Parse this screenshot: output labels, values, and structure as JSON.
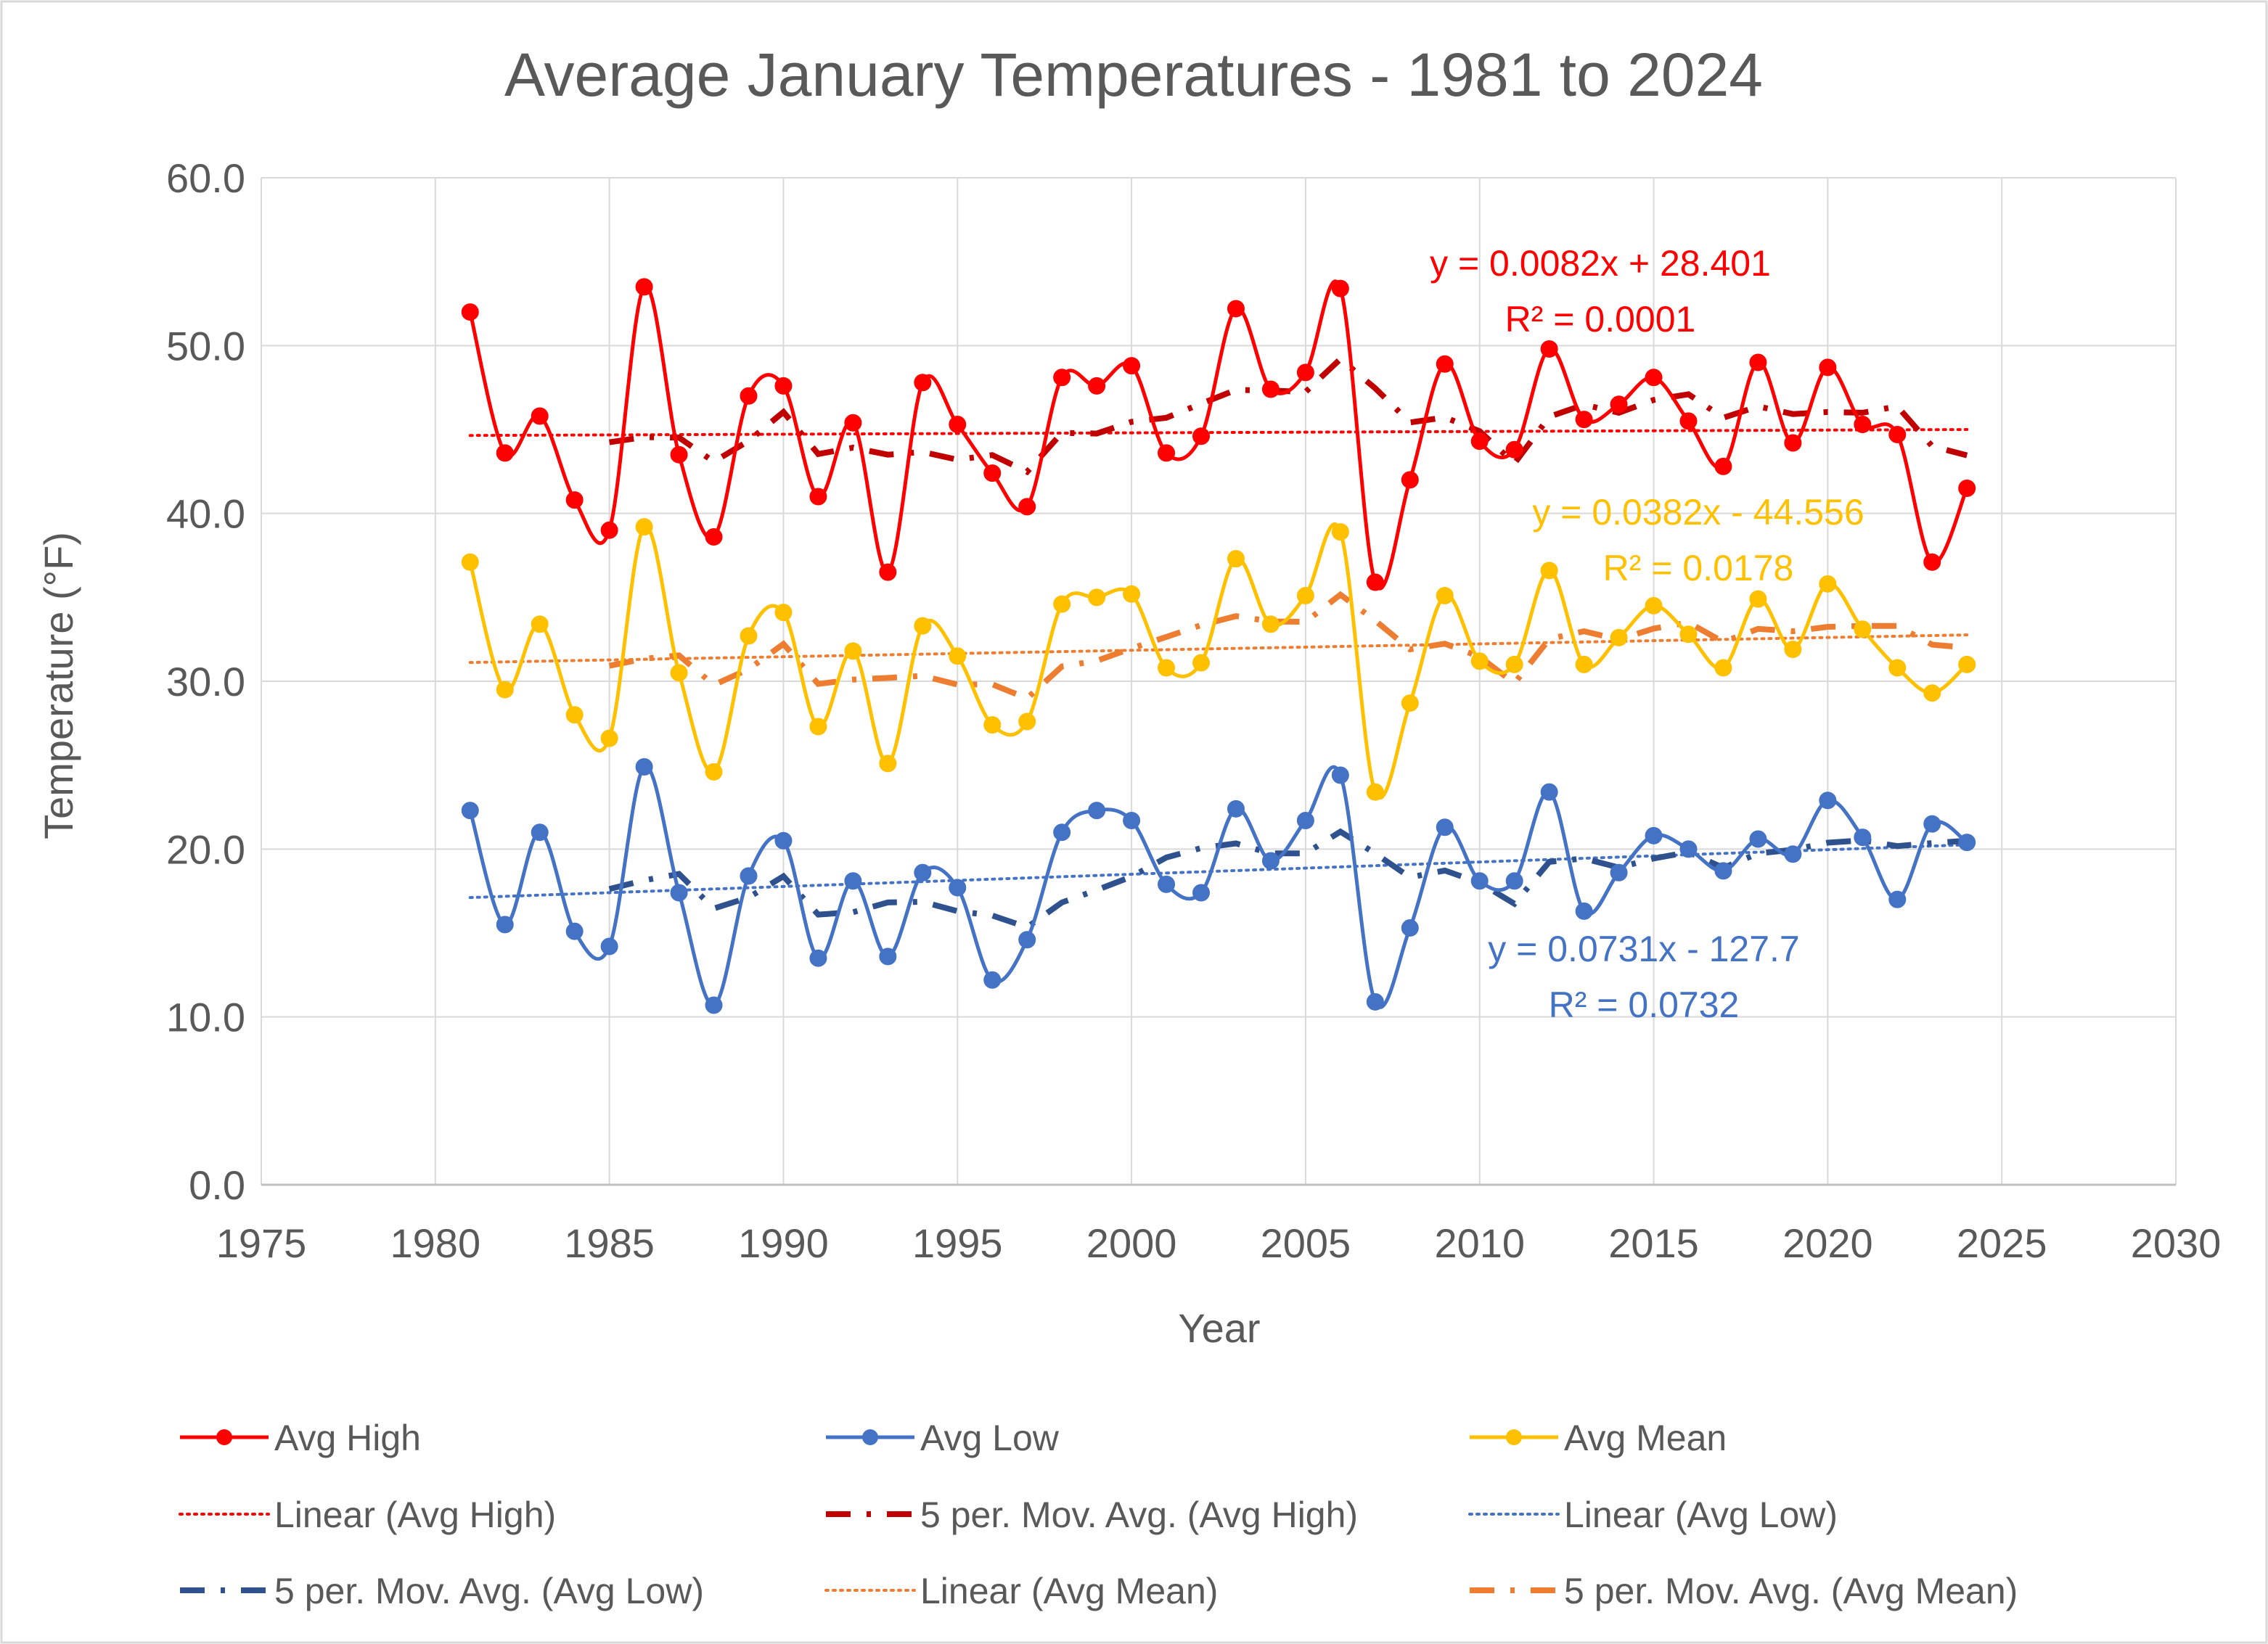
{
  "chart_data": {
    "type": "line",
    "title": "Average January Temperatures - 1981 to 2024",
    "xlabel": "Year",
    "ylabel": "Temperature (°F)",
    "xlim": [
      1975,
      2030
    ],
    "ylim": [
      0,
      60
    ],
    "xticks": [
      1975,
      1980,
      1985,
      1990,
      1995,
      2000,
      2005,
      2010,
      2015,
      2020,
      2025,
      2030
    ],
    "yticks": [
      0,
      10,
      20,
      30,
      40,
      50,
      60
    ],
    "ytick_labels": [
      "0.0",
      "10.0",
      "20.0",
      "30.0",
      "40.0",
      "50.0",
      "60.0"
    ],
    "grid": true,
    "legend_position": "bottom",
    "x": [
      1981,
      1982,
      1983,
      1984,
      1985,
      1986,
      1987,
      1988,
      1989,
      1990,
      1991,
      1992,
      1993,
      1994,
      1995,
      1996,
      1997,
      1998,
      1999,
      2000,
      2001,
      2002,
      2003,
      2004,
      2005,
      2006,
      2007,
      2008,
      2009,
      2010,
      2011,
      2012,
      2013,
      2014,
      2015,
      2016,
      2017,
      2018,
      2019,
      2020,
      2021,
      2022,
      2023,
      2024
    ],
    "series": [
      {
        "name": "Avg High",
        "color": "#FF0000",
        "values": [
          52.0,
          43.6,
          45.8,
          40.8,
          39.0,
          53.5,
          43.5,
          38.6,
          47.0,
          47.6,
          41.0,
          45.4,
          36.5,
          47.8,
          45.3,
          42.4,
          40.4,
          48.1,
          47.6,
          48.8,
          43.6,
          44.6,
          52.2,
          47.4,
          48.4,
          53.4,
          35.9,
          42.0,
          48.9,
          44.3,
          43.8,
          49.8,
          45.6,
          46.5,
          48.1,
          45.5,
          42.8,
          49.0,
          44.2,
          48.7,
          45.3,
          44.7,
          37.1,
          41.5
        ],
        "trend_label": "Linear (Avg High)",
        "trend_color": "#FF0000",
        "trend_slope": 0.0082,
        "trend_intercept": 28.401,
        "trend_equation": "y = 0.0082x + 28.401",
        "trend_r2": "R² = 0.0001",
        "movavg_label": "5 per. Mov. Avg. (Avg High)",
        "movavg_color": "#C00000"
      },
      {
        "name": "Avg Low",
        "color": "#4472C4",
        "values": [
          22.3,
          15.5,
          21.0,
          15.1,
          14.2,
          24.9,
          17.4,
          10.7,
          18.4,
          20.5,
          13.5,
          18.1,
          13.6,
          18.6,
          17.7,
          12.2,
          14.6,
          21.0,
          22.3,
          21.7,
          17.9,
          17.4,
          22.4,
          19.3,
          21.7,
          24.4,
          10.9,
          15.3,
          21.3,
          18.1,
          18.1,
          23.4,
          16.3,
          18.6,
          20.8,
          20.0,
          18.7,
          20.6,
          19.7,
          22.9,
          20.7,
          17.0,
          21.5,
          20.4
        ],
        "trend_label": "Linear (Avg Low)",
        "trend_color": "#4472C4",
        "trend_slope": 0.0731,
        "trend_intercept": -127.7,
        "trend_equation": "y = 0.0731x - 127.7",
        "trend_r2": "R² = 0.0732",
        "movavg_label": "5 per. Mov. Avg. (Avg Low)",
        "movavg_color": "#2F528F"
      },
      {
        "name": "Avg Mean",
        "color": "#FFC000",
        "values": [
          37.1,
          29.5,
          33.4,
          28.0,
          26.6,
          39.2,
          30.5,
          24.6,
          32.7,
          34.1,
          27.3,
          31.8,
          25.1,
          33.3,
          31.5,
          27.4,
          27.6,
          34.6,
          35.0,
          35.2,
          30.8,
          31.1,
          37.3,
          33.4,
          35.1,
          38.9,
          23.4,
          28.7,
          35.1,
          31.2,
          31.0,
          36.6,
          31.0,
          32.6,
          34.5,
          32.8,
          30.8,
          34.9,
          31.9,
          35.8,
          33.1,
          30.8,
          29.3,
          31.0
        ],
        "trend_label": "Linear (Avg Mean)",
        "trend_color": "#ED7D31",
        "trend_slope": 0.0382,
        "trend_intercept": -44.556,
        "trend_equation": "y = 0.0382x - 44.556",
        "trend_r2": "R² = 0.0178",
        "movavg_label": "5 per. Mov. Avg. (Avg Mean)",
        "movavg_color": "#ED7D31"
      }
    ],
    "moving_average_period": 5,
    "legend": [
      {
        "label": "Avg High",
        "style": "marker-line",
        "color": "#FF0000"
      },
      {
        "label": "Avg Low",
        "style": "marker-line",
        "color": "#4472C4"
      },
      {
        "label": "Avg Mean",
        "style": "marker-line",
        "color": "#FFC000"
      },
      {
        "label": "Linear (Avg High)",
        "style": "dotted",
        "color": "#FF0000"
      },
      {
        "label": "5 per. Mov. Avg. (Avg High)",
        "style": "dash-dot",
        "color": "#C00000"
      },
      {
        "label": "Linear (Avg Low)",
        "style": "dotted",
        "color": "#4472C4"
      },
      {
        "label": "5 per. Mov. Avg. (Avg Low)",
        "style": "dash-dot",
        "color": "#2F528F"
      },
      {
        "label": "Linear (Avg Mean)",
        "style": "dotted",
        "color": "#ED7D31"
      },
      {
        "label": "5 per. Mov. Avg. (Avg Mean)",
        "style": "dash-dot",
        "color": "#ED7D31"
      }
    ]
  }
}
